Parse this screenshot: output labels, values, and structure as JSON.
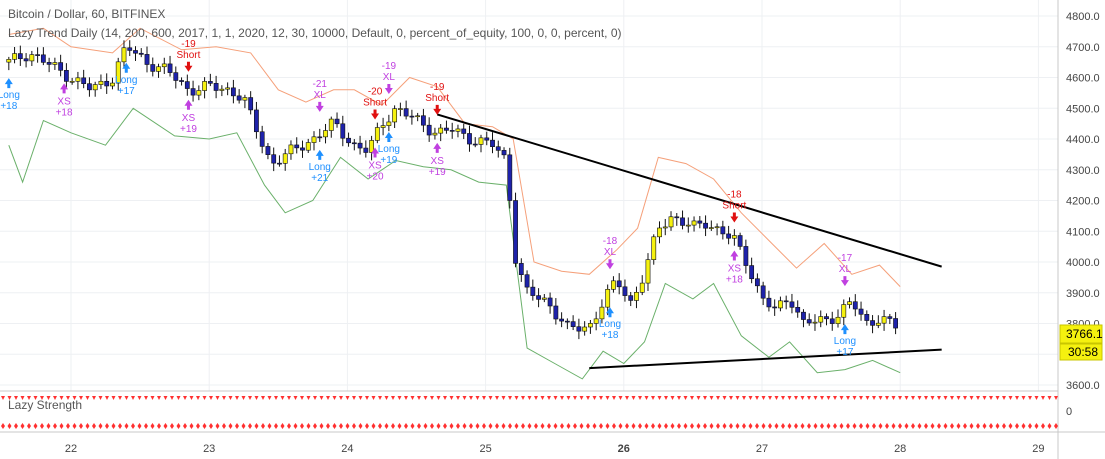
{
  "header": {
    "title": "Bitcoin / Dollar, 60, BITFINEX",
    "indicator_line": "Lazy Trend Daily (14, 200, 600, 2017, 1, 1, 2020, 12, 30, 10000, Default, 0, percent_of_equity, 100, 0, 0, percent, 0)"
  },
  "sub_panel": {
    "label": "Lazy Strength",
    "scale_zero": "0"
  },
  "price_badges": {
    "last_price": "3766.1",
    "countdown": "30:58"
  },
  "colors": {
    "candle_up": "#f5f10f",
    "candle_down": "#1e22aa",
    "upper_band": "#f5a07a",
    "lower_band": "#6ab06a",
    "trend_lines": "#000000",
    "long_marker": "#1e90ff",
    "short_marker": "#e01010",
    "exit_marker": "#c040e0",
    "sub_panel_dots": "#ff3030"
  },
  "chart_data": {
    "type": "candlestick",
    "title": "Bitcoin / Dollar, 60, BITFINEX",
    "ylim": [
      3600,
      4800
    ],
    "y_ticks": [
      "3600.0",
      "3700.0",
      "3800.0",
      "3900.0",
      "4000.0",
      "4100.0",
      "4200.0",
      "4300.0",
      "4400.0",
      "4500.0",
      "4600.0",
      "4700.0",
      "4800.0"
    ],
    "x_ticks": [
      "22",
      "23",
      "24",
      "25",
      "26",
      "27",
      "28",
      "29"
    ],
    "xlim": [
      21.5,
      29.5
    ],
    "last_close": 3766.1,
    "close_path": [
      [
        21.55,
        4650
      ],
      [
        21.7,
        4680
      ],
      [
        21.85,
        4640
      ],
      [
        22.0,
        4600
      ],
      [
        22.15,
        4560
      ],
      [
        22.3,
        4600
      ],
      [
        22.4,
        4700
      ],
      [
        22.55,
        4650
      ],
      [
        22.7,
        4620
      ],
      [
        22.85,
        4560
      ],
      [
        23.0,
        4570
      ],
      [
        23.15,
        4560
      ],
      [
        23.25,
        4530
      ],
      [
        23.35,
        4420
      ],
      [
        23.45,
        4320
      ],
      [
        23.6,
        4360
      ],
      [
        23.75,
        4400
      ],
      [
        23.9,
        4450
      ],
      [
        24.05,
        4380
      ],
      [
        24.15,
        4360
      ],
      [
        24.25,
        4450
      ],
      [
        24.35,
        4500
      ],
      [
        24.5,
        4460
      ],
      [
        24.65,
        4420
      ],
      [
        24.75,
        4430
      ],
      [
        24.9,
        4400
      ],
      [
        25.05,
        4380
      ],
      [
        25.15,
        4330
      ],
      [
        25.22,
        4000
      ],
      [
        25.3,
        3900
      ],
      [
        25.45,
        3870
      ],
      [
        25.6,
        3780
      ],
      [
        25.75,
        3790
      ],
      [
        25.85,
        3870
      ],
      [
        25.95,
        3940
      ],
      [
        26.05,
        3870
      ],
      [
        26.15,
        3960
      ],
      [
        26.25,
        4110
      ],
      [
        26.35,
        4150
      ],
      [
        26.5,
        4110
      ],
      [
        26.6,
        4130
      ],
      [
        26.7,
        4100
      ],
      [
        26.8,
        4070
      ],
      [
        26.9,
        3990
      ],
      [
        27.0,
        3880
      ],
      [
        27.1,
        3840
      ],
      [
        27.2,
        3890
      ],
      [
        27.3,
        3800
      ],
      [
        27.45,
        3810
      ],
      [
        27.55,
        3830
      ],
      [
        27.65,
        3870
      ],
      [
        27.75,
        3800
      ],
      [
        27.85,
        3820
      ],
      [
        28.0,
        3780
      ]
    ],
    "upper_band": [
      [
        21.55,
        4740
      ],
      [
        21.8,
        4760
      ],
      [
        22.0,
        4700
      ],
      [
        22.3,
        4680
      ],
      [
        22.5,
        4760
      ],
      [
        22.8,
        4690
      ],
      [
        23.05,
        4700
      ],
      [
        23.3,
        4680
      ],
      [
        23.5,
        4560
      ],
      [
        23.7,
        4520
      ],
      [
        23.9,
        4560
      ],
      [
        24.05,
        4560
      ],
      [
        24.25,
        4510
      ],
      [
        24.45,
        4600
      ],
      [
        24.65,
        4570
      ],
      [
        24.85,
        4450
      ],
      [
        25.05,
        4440
      ],
      [
        25.2,
        4400
      ],
      [
        25.35,
        4000
      ],
      [
        25.55,
        3970
      ],
      [
        25.75,
        3960
      ],
      [
        25.95,
        4040
      ],
      [
        26.1,
        4110
      ],
      [
        26.25,
        4340
      ],
      [
        26.45,
        4320
      ],
      [
        26.65,
        4270
      ],
      [
        26.85,
        4160
      ],
      [
        27.05,
        4070
      ],
      [
        27.25,
        3980
      ],
      [
        27.45,
        4060
      ],
      [
        27.65,
        3960
      ],
      [
        27.85,
        3990
      ],
      [
        28.0,
        3920
      ]
    ],
    "lower_band": [
      [
        21.55,
        4380
      ],
      [
        21.65,
        4260
      ],
      [
        21.8,
        4460
      ],
      [
        22.0,
        4420
      ],
      [
        22.25,
        4380
      ],
      [
        22.45,
        4500
      ],
      [
        22.75,
        4410
      ],
      [
        23.0,
        4400
      ],
      [
        23.2,
        4420
      ],
      [
        23.4,
        4250
      ],
      [
        23.55,
        4160
      ],
      [
        23.75,
        4200
      ],
      [
        23.95,
        4340
      ],
      [
        24.15,
        4270
      ],
      [
        24.35,
        4330
      ],
      [
        24.55,
        4310
      ],
      [
        24.75,
        4300
      ],
      [
        24.95,
        4260
      ],
      [
        25.15,
        4250
      ],
      [
        25.3,
        3720
      ],
      [
        25.5,
        3670
      ],
      [
        25.7,
        3620
      ],
      [
        25.85,
        3710
      ],
      [
        26.0,
        3670
      ],
      [
        26.15,
        3740
      ],
      [
        26.3,
        3930
      ],
      [
        26.5,
        3880
      ],
      [
        26.65,
        3930
      ],
      [
        26.85,
        3760
      ],
      [
        27.05,
        3690
      ],
      [
        27.2,
        3740
      ],
      [
        27.4,
        3640
      ],
      [
        27.6,
        3650
      ],
      [
        27.8,
        3680
      ],
      [
        28.0,
        3640
      ]
    ],
    "trend_lines": [
      {
        "from": [
          24.65,
          4480
        ],
        "to": [
          28.3,
          3985
        ]
      },
      {
        "from": [
          25.75,
          3655
        ],
        "to": [
          28.3,
          3715
        ]
      }
    ],
    "signals": [
      {
        "x": 21.55,
        "type": "Long",
        "label": "Long",
        "value": "+18"
      },
      {
        "x": 21.95,
        "type": "XS",
        "label": "XS",
        "value": "+18"
      },
      {
        "x": 22.4,
        "type": "Long",
        "label": "Long",
        "value": "+17"
      },
      {
        "x": 22.85,
        "type": "Short",
        "label": "Short",
        "value": "-19"
      },
      {
        "x": 22.85,
        "type": "XS",
        "label": "XS",
        "value": "+19"
      },
      {
        "x": 23.8,
        "type": "XL",
        "label": "XL",
        "value": "-21"
      },
      {
        "x": 23.8,
        "type": "Long",
        "label": "Long",
        "value": "+21"
      },
      {
        "x": 24.2,
        "type": "Short",
        "label": "Short",
        "value": "-20"
      },
      {
        "x": 24.2,
        "type": "XS",
        "label": "XS",
        "value": "+20"
      },
      {
        "x": 24.3,
        "type": "XL",
        "label": "XL",
        "value": "-19"
      },
      {
        "x": 24.3,
        "type": "Long",
        "label": "Long",
        "value": "+19"
      },
      {
        "x": 24.65,
        "type": "Short",
        "label": "Short",
        "value": "-19"
      },
      {
        "x": 24.65,
        "type": "XS",
        "label": "XS",
        "value": "+19"
      },
      {
        "x": 25.9,
        "type": "XL",
        "label": "XL",
        "value": "-18"
      },
      {
        "x": 25.9,
        "type": "Long",
        "label": "Long",
        "value": "+18"
      },
      {
        "x": 26.8,
        "type": "Short",
        "label": "Short",
        "value": "-18"
      },
      {
        "x": 26.8,
        "type": "XS",
        "label": "XS",
        "value": "+18"
      },
      {
        "x": 27.6,
        "type": "XL",
        "label": "XL",
        "value": "-17"
      },
      {
        "x": 27.6,
        "type": "Long",
        "label": "Long",
        "value": "+17"
      }
    ]
  }
}
